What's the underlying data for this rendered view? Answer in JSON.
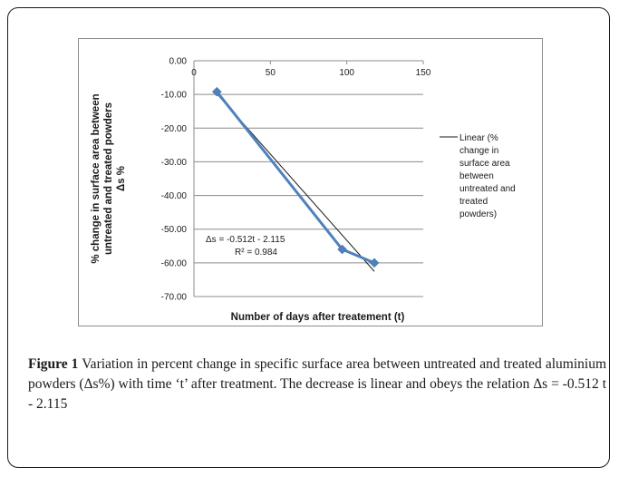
{
  "caption": {
    "label": "Figure 1",
    "text": " Variation in percent change in specific surface area between untreated and treated aluminium powders (Δs%) with time ‘t’ after treatment. The decrease is linear and obeys the relation Δs = -0.512 t - 2.115"
  },
  "chart_data": {
    "type": "line",
    "xlabel": "Number of days after treatement  (t)",
    "ylabel_lines": [
      "% change in surface area between",
      "untreated and treated powders",
      "Δs %"
    ],
    "x_ticks": [
      "0",
      "50",
      "100",
      "150"
    ],
    "y_ticks": [
      "0.00",
      "-10.00",
      "-20.00",
      "-30.00",
      "-40.00",
      "-50.00",
      "-60.00",
      "-70.00"
    ],
    "xlim": [
      0,
      150
    ],
    "ylim": [
      -70,
      0
    ],
    "grid": "horizontal",
    "series": [
      {
        "x": [
          15,
          97,
          118
        ],
        "y": [
          -9.2,
          -56.0,
          -60.0
        ],
        "color": "#4f81bd",
        "marker": "diamond"
      }
    ],
    "trendline": {
      "slope": -0.512,
      "intercept": -2.115,
      "x_range": [
        15,
        118
      ],
      "color": "#1a1a1a",
      "legend_lines": [
        "Linear (%",
        "change in",
        "surface area",
        "between",
        "untreated and",
        "treated",
        "powders)"
      ]
    },
    "equation_lines": [
      "Δs = -0.512t - 2.115",
      "R² = 0.984"
    ],
    "legend_position": "right"
  }
}
